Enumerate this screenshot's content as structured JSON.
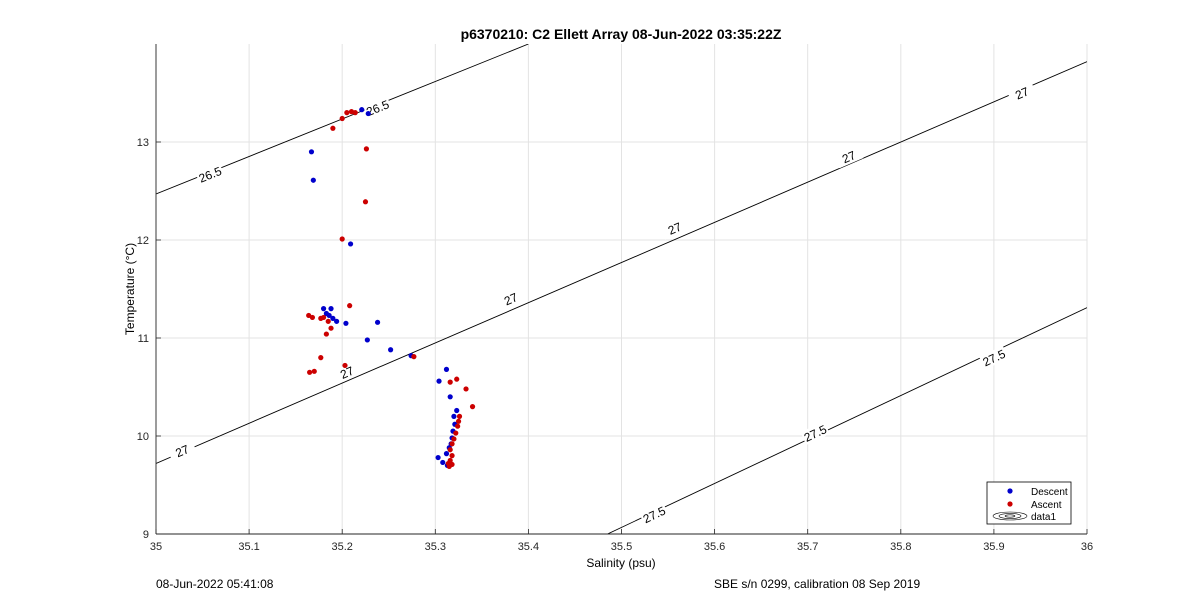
{
  "chart_data": {
    "type": "scatter",
    "title": "p6370210: C2 Ellett Array 08-Jun-2022 03:35:22Z",
    "xlabel": "Salinity (psu)",
    "ylabel": "Temperature (°C)",
    "xlim": [
      35,
      36
    ],
    "ylim": [
      9,
      14
    ],
    "xticks": [
      "35",
      "35.1",
      "35.2",
      "35.3",
      "35.4",
      "35.5",
      "35.6",
      "35.7",
      "35.8",
      "35.9",
      "36"
    ],
    "yticks": [
      "9",
      "10",
      "11",
      "12",
      "13"
    ],
    "grid": true,
    "legend_position": "bottom-right",
    "legend": [
      "Descent",
      "Ascent",
      "data1"
    ],
    "series": [
      {
        "name": "Descent",
        "color": "#0000cc",
        "points": [
          [
            35.221,
            13.33
          ],
          [
            35.228,
            13.29
          ],
          [
            35.167,
            12.9
          ],
          [
            35.169,
            12.61
          ],
          [
            35.209,
            11.96
          ],
          [
            35.18,
            11.3
          ],
          [
            35.188,
            11.3
          ],
          [
            35.183,
            11.25
          ],
          [
            35.186,
            11.23
          ],
          [
            35.19,
            11.2
          ],
          [
            35.194,
            11.17
          ],
          [
            35.204,
            11.15
          ],
          [
            35.238,
            11.16
          ],
          [
            35.227,
            10.98
          ],
          [
            35.252,
            10.88
          ],
          [
            35.274,
            10.82
          ],
          [
            35.312,
            10.68
          ],
          [
            35.304,
            10.56
          ],
          [
            35.316,
            10.4
          ],
          [
            35.323,
            10.26
          ],
          [
            35.32,
            10.2
          ],
          [
            35.321,
            10.12
          ],
          [
            35.319,
            10.05
          ],
          [
            35.318,
            9.98
          ],
          [
            35.317,
            9.92
          ],
          [
            35.315,
            9.88
          ],
          [
            35.312,
            9.82
          ],
          [
            35.303,
            9.78
          ],
          [
            35.308,
            9.73
          ],
          [
            35.313,
            9.7
          ]
        ]
      },
      {
        "name": "Ascent",
        "color": "#cc0000",
        "points": [
          [
            35.205,
            13.3
          ],
          [
            35.21,
            13.31
          ],
          [
            35.214,
            13.3
          ],
          [
            35.2,
            13.24
          ],
          [
            35.19,
            13.14
          ],
          [
            35.226,
            12.93
          ],
          [
            35.225,
            12.39
          ],
          [
            35.2,
            12.01
          ],
          [
            35.208,
            11.33
          ],
          [
            35.164,
            11.23
          ],
          [
            35.168,
            11.21
          ],
          [
            35.177,
            11.2
          ],
          [
            35.18,
            11.21
          ],
          [
            35.185,
            11.17
          ],
          [
            35.188,
            11.1
          ],
          [
            35.183,
            11.04
          ],
          [
            35.203,
            10.72
          ],
          [
            35.177,
            10.8
          ],
          [
            35.165,
            10.65
          ],
          [
            35.17,
            10.66
          ],
          [
            35.277,
            10.81
          ],
          [
            35.323,
            10.58
          ],
          [
            35.316,
            10.55
          ],
          [
            35.333,
            10.48
          ],
          [
            35.34,
            10.3
          ],
          [
            35.326,
            10.2
          ],
          [
            35.325,
            10.15
          ],
          [
            35.324,
            10.1
          ],
          [
            35.322,
            10.03
          ],
          [
            35.32,
            9.97
          ],
          [
            35.318,
            9.92
          ],
          [
            35.316,
            9.86
          ],
          [
            35.318,
            9.8
          ],
          [
            35.316,
            9.75
          ],
          [
            35.314,
            9.72
          ],
          [
            35.315,
            9.69
          ],
          [
            35.318,
            9.71
          ]
        ]
      }
    ],
    "contours": [
      {
        "label": "26.5",
        "x": [
          35.0,
          35.4
        ],
        "y": [
          12.47,
          14.0
        ],
        "label_positions": [
          [
            35.058,
            12.67
          ],
          [
            35.238,
            13.35
          ]
        ]
      },
      {
        "label": "27",
        "x": [
          35.0,
          36.0
        ],
        "y": [
          9.72,
          13.82
        ],
        "label_positions": [
          [
            35.028,
            9.85
          ],
          [
            35.205,
            10.65
          ],
          [
            35.381,
            11.4
          ],
          [
            35.557,
            12.12
          ],
          [
            35.744,
            12.85
          ],
          [
            35.93,
            13.5
          ]
        ]
      },
      {
        "label": "27.5",
        "x": [
          35.485,
          36.0
        ],
        "y": [
          9.0,
          11.31
        ],
        "label_positions": [
          [
            35.535,
            9.2
          ],
          [
            35.708,
            10.03
          ],
          [
            35.9,
            10.8
          ]
        ]
      }
    ]
  },
  "footer": {
    "left": "08-Jun-2022 05:41:08",
    "right": "SBE s/n 0299, calibration 08 Sep 2019"
  }
}
